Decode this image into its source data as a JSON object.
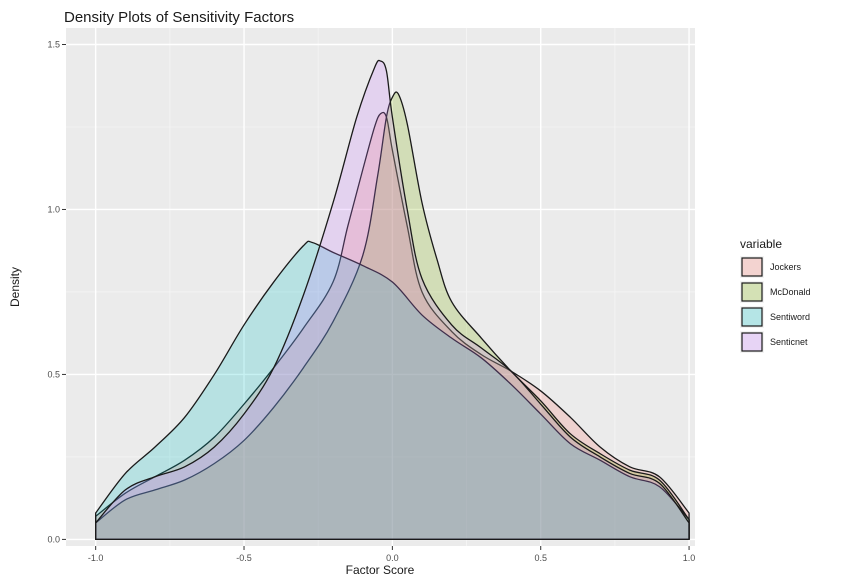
{
  "chart_data": {
    "type": "area",
    "title": "Density Plots of Sensitivity Factors",
    "xlabel": "Factor Score",
    "ylabel": "Density",
    "xlim": [
      -1.1,
      1.02
    ],
    "ylim": [
      -0.02,
      1.55
    ],
    "x_ticks": [
      -1.0,
      -0.5,
      0.0,
      0.5,
      1.0
    ],
    "x_tick_labels": [
      "-1.0",
      "-0.5",
      "0.0",
      "0.5",
      "1.0"
    ],
    "y_ticks": [
      0.0,
      0.5,
      1.0,
      1.5
    ],
    "y_tick_labels": [
      "0.0",
      "0.5",
      "1.0",
      "1.5"
    ],
    "grid": true,
    "legend": {
      "title": "variable",
      "placement": "right"
    },
    "series": [
      {
        "name": "Jockers",
        "color": "#F8766D",
        "points": [
          [
            -1.0,
            0.07
          ],
          [
            -0.9,
            0.14
          ],
          [
            -0.8,
            0.19
          ],
          [
            -0.7,
            0.24
          ],
          [
            -0.6,
            0.31
          ],
          [
            -0.5,
            0.41
          ],
          [
            -0.4,
            0.52
          ],
          [
            -0.3,
            0.64
          ],
          [
            -0.2,
            0.78
          ],
          [
            -0.15,
            0.95
          ],
          [
            -0.1,
            1.12
          ],
          [
            -0.06,
            1.25
          ],
          [
            -0.04,
            1.29
          ],
          [
            -0.02,
            1.28
          ],
          [
            0.0,
            1.18
          ],
          [
            0.05,
            0.95
          ],
          [
            0.1,
            0.75
          ],
          [
            0.2,
            0.63
          ],
          [
            0.3,
            0.56
          ],
          [
            0.4,
            0.51
          ],
          [
            0.5,
            0.45
          ],
          [
            0.6,
            0.37
          ],
          [
            0.7,
            0.28
          ],
          [
            0.8,
            0.22
          ],
          [
            0.9,
            0.19
          ],
          [
            1.0,
            0.08
          ]
        ]
      },
      {
        "name": "McDonald",
        "color": "#7CAE00",
        "points": [
          [
            -1.0,
            0.05
          ],
          [
            -0.9,
            0.12
          ],
          [
            -0.8,
            0.15
          ],
          [
            -0.7,
            0.18
          ],
          [
            -0.6,
            0.23
          ],
          [
            -0.5,
            0.3
          ],
          [
            -0.4,
            0.4
          ],
          [
            -0.3,
            0.52
          ],
          [
            -0.2,
            0.66
          ],
          [
            -0.1,
            0.86
          ],
          [
            -0.05,
            1.1
          ],
          [
            -0.02,
            1.28
          ],
          [
            0.0,
            1.34
          ],
          [
            0.02,
            1.35
          ],
          [
            0.05,
            1.26
          ],
          [
            0.1,
            1.02
          ],
          [
            0.15,
            0.85
          ],
          [
            0.2,
            0.72
          ],
          [
            0.3,
            0.61
          ],
          [
            0.4,
            0.51
          ],
          [
            0.5,
            0.42
          ],
          [
            0.6,
            0.32
          ],
          [
            0.7,
            0.26
          ],
          [
            0.8,
            0.21
          ],
          [
            0.9,
            0.18
          ],
          [
            1.0,
            0.06
          ]
        ]
      },
      {
        "name": "Sentiword",
        "color": "#00BFC4",
        "points": [
          [
            -1.0,
            0.08
          ],
          [
            -0.9,
            0.2
          ],
          [
            -0.8,
            0.28
          ],
          [
            -0.7,
            0.37
          ],
          [
            -0.6,
            0.5
          ],
          [
            -0.5,
            0.65
          ],
          [
            -0.4,
            0.78
          ],
          [
            -0.3,
            0.89
          ],
          [
            -0.27,
            0.9
          ],
          [
            -0.2,
            0.87
          ],
          [
            -0.1,
            0.83
          ],
          [
            0.0,
            0.78
          ],
          [
            0.1,
            0.68
          ],
          [
            0.2,
            0.61
          ],
          [
            0.3,
            0.55
          ],
          [
            0.4,
            0.47
          ],
          [
            0.5,
            0.38
          ],
          [
            0.6,
            0.29
          ],
          [
            0.7,
            0.24
          ],
          [
            0.8,
            0.19
          ],
          [
            0.9,
            0.16
          ],
          [
            1.0,
            0.06
          ]
        ]
      },
      {
        "name": "Senticnet",
        "color": "#C77CFF",
        "points": [
          [
            -1.0,
            0.05
          ],
          [
            -0.9,
            0.15
          ],
          [
            -0.8,
            0.19
          ],
          [
            -0.7,
            0.22
          ],
          [
            -0.6,
            0.28
          ],
          [
            -0.5,
            0.38
          ],
          [
            -0.4,
            0.52
          ],
          [
            -0.3,
            0.74
          ],
          [
            -0.2,
            1.02
          ],
          [
            -0.12,
            1.28
          ],
          [
            -0.06,
            1.43
          ],
          [
            -0.04,
            1.45
          ],
          [
            -0.02,
            1.42
          ],
          [
            0.0,
            1.28
          ],
          [
            0.05,
            1.0
          ],
          [
            0.1,
            0.79
          ],
          [
            0.2,
            0.65
          ],
          [
            0.3,
            0.58
          ],
          [
            0.4,
            0.51
          ],
          [
            0.5,
            0.41
          ],
          [
            0.6,
            0.31
          ],
          [
            0.7,
            0.25
          ],
          [
            0.8,
            0.2
          ],
          [
            0.9,
            0.17
          ],
          [
            1.0,
            0.05
          ]
        ]
      }
    ]
  }
}
